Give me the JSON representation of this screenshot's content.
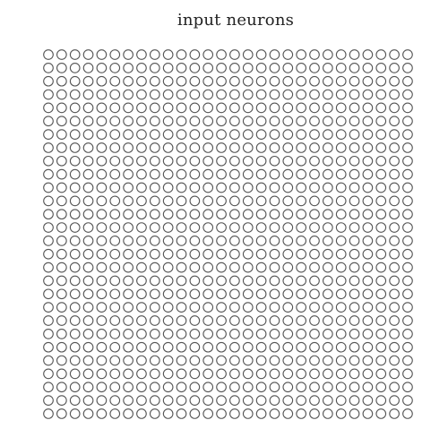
{
  "title": "input neurons",
  "grid": {
    "rows": 28,
    "cols": 28,
    "stroke_color": "#555555"
  }
}
